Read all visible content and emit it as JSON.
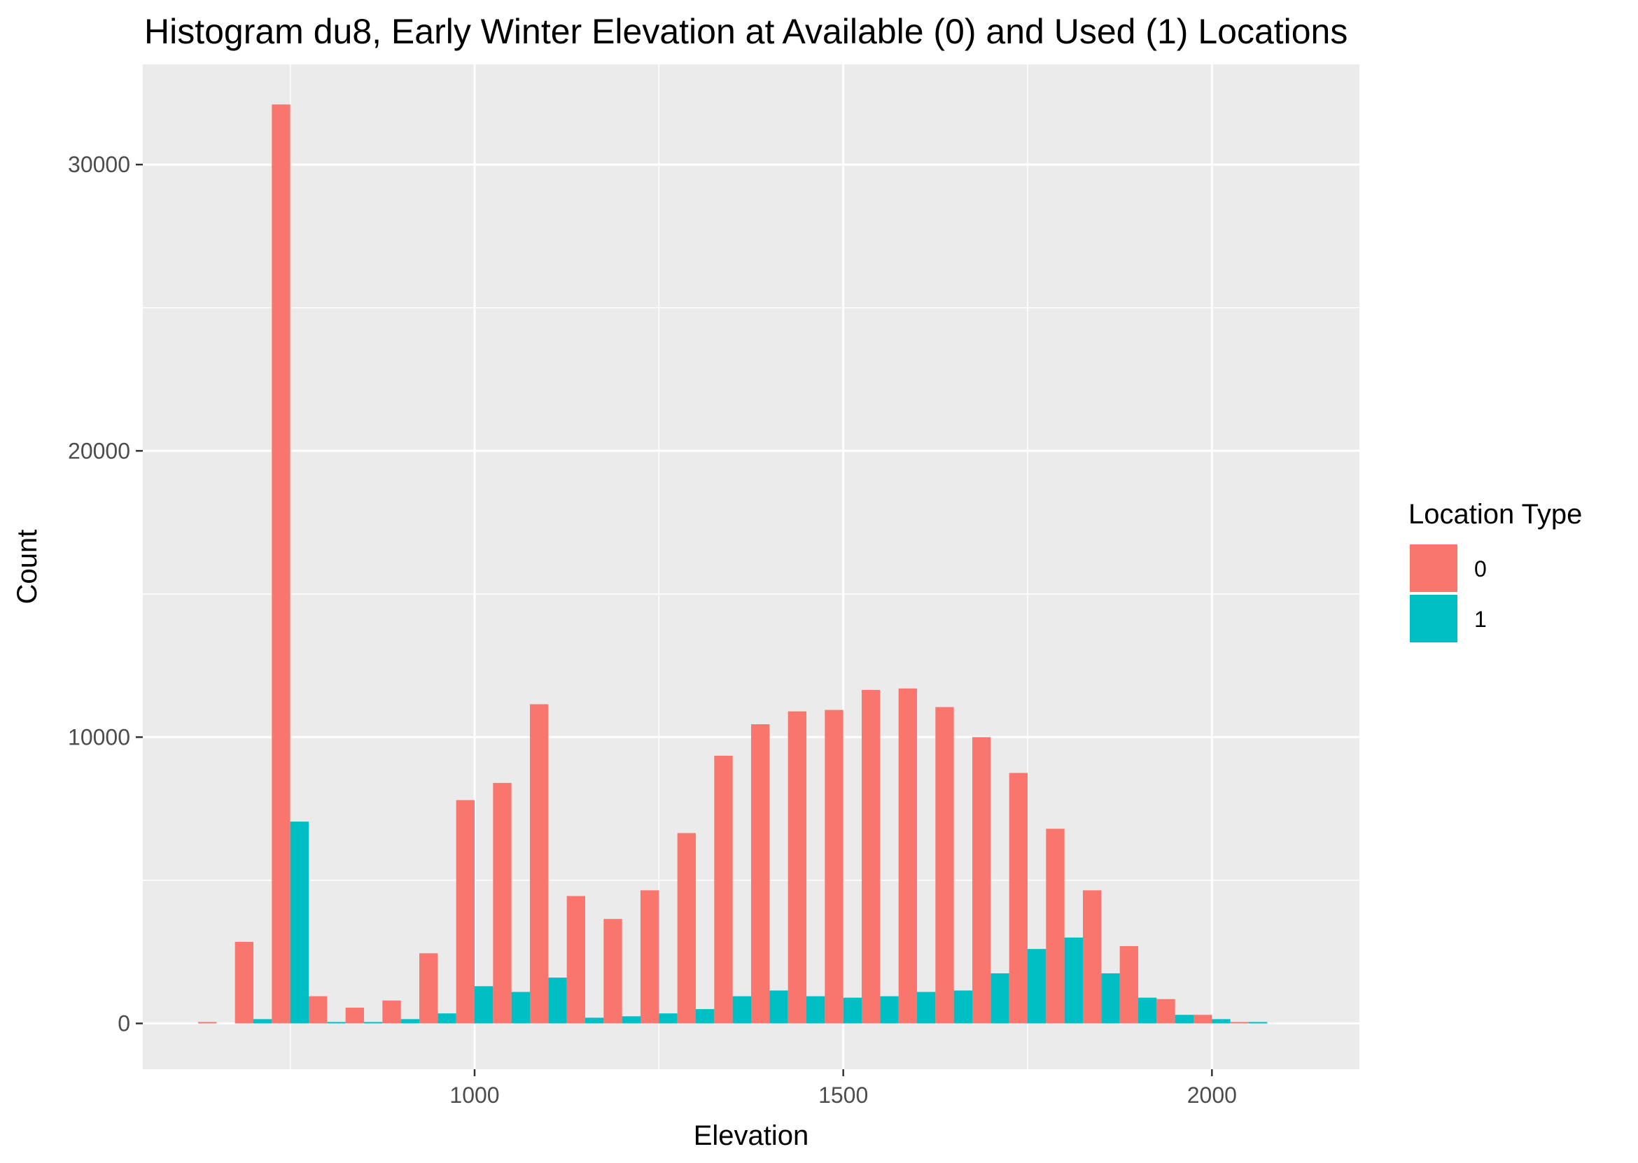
{
  "chart_data": {
    "type": "bar",
    "title": "Histogram du8, Early Winter Elevation at Available (0) and Used (1) Locations",
    "xlabel": "Elevation",
    "ylabel": "Count",
    "xlim": [
      550,
      2200
    ],
    "ylim": [
      -1600,
      33500
    ],
    "grid": true,
    "x_ticks": [
      1000,
      1500,
      2000
    ],
    "y_ticks": [
      0,
      10000,
      20000,
      30000
    ],
    "bins": [
      650,
      700,
      750,
      800,
      850,
      900,
      950,
      1000,
      1050,
      1100,
      1150,
      1200,
      1250,
      1300,
      1350,
      1400,
      1450,
      1500,
      1550,
      1600,
      1650,
      1700,
      1750,
      1800,
      1850,
      1900,
      1950,
      2000,
      2050
    ],
    "bin_width": 50,
    "series": [
      {
        "name": "0",
        "color": "#F8766D",
        "values": [
          50,
          2850,
          32100,
          950,
          550,
          800,
          2450,
          7800,
          8400,
          11150,
          4450,
          3650,
          4650,
          6650,
          9350,
          10450,
          10900,
          10950,
          11650,
          11700,
          11050,
          10000,
          8750,
          6800,
          4650,
          2700,
          850,
          300,
          50
        ]
      },
      {
        "name": "1",
        "color": "#00BFC4",
        "values": [
          0,
          150,
          7050,
          50,
          50,
          150,
          350,
          1300,
          1100,
          1600,
          200,
          250,
          350,
          500,
          950,
          1150,
          950,
          900,
          950,
          1100,
          1150,
          1750,
          2600,
          3000,
          1750,
          900,
          300,
          150,
          50
        ]
      }
    ],
    "legend": {
      "title": "Location Type",
      "position": "right"
    }
  }
}
